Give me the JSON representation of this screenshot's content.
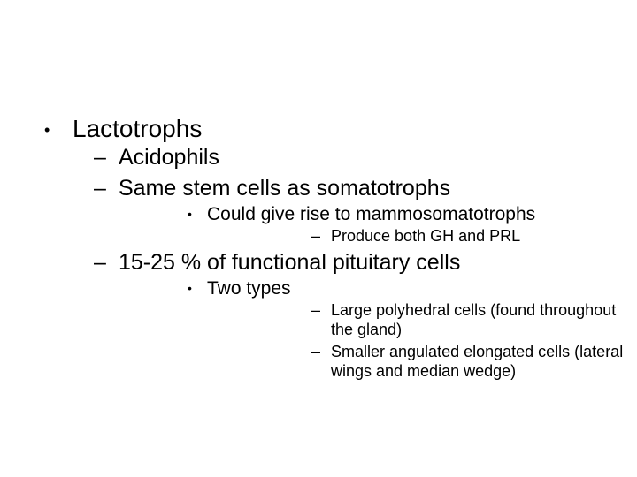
{
  "colors": {
    "background": "#ffffff",
    "text": "#000000"
  },
  "typography": {
    "family": "Arial",
    "level_sizes_pt": {
      "l1": 21,
      "l2": 19,
      "l3": 16,
      "l4": 14
    }
  },
  "outline": {
    "l1_bullet": "•",
    "l2_bullet": "–",
    "l3_bullet": "•",
    "l4_bullet": "–",
    "items": [
      {
        "text": "Lactotrophs",
        "children": [
          {
            "text": "Acidophils"
          },
          {
            "text": "Same stem cells as somatotrophs",
            "children": [
              {
                "text": "Could give rise to mammosomatotrophs",
                "children": [
                  {
                    "text": "Produce both GH and PRL"
                  }
                ]
              }
            ]
          },
          {
            "text": "15-25 % of functional pituitary cells",
            "children": [
              {
                "text": "Two types",
                "children": [
                  {
                    "text": "Large polyhedral cells (found throughout the gland)"
                  },
                  {
                    "text": "Smaller angulated elongated cells (lateral wings and median wedge)"
                  }
                ]
              }
            ]
          }
        ]
      }
    ]
  }
}
